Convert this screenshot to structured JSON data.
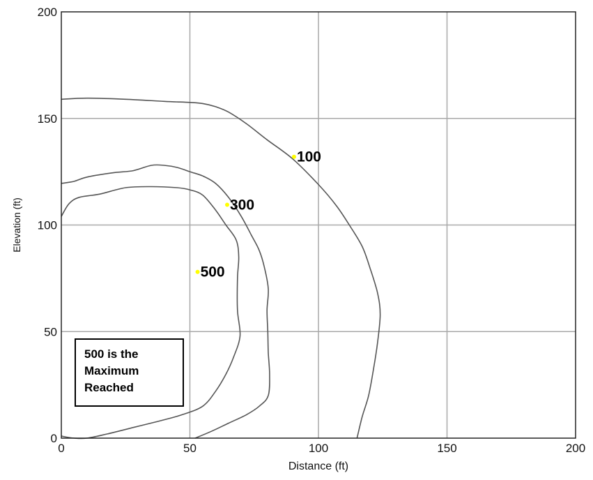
{
  "chart_data": {
    "type": "line",
    "title": "",
    "xlabel": "Distance (ft)",
    "ylabel": "Elevation (ft)",
    "xlim": [
      0,
      200
    ],
    "ylim": [
      0,
      200
    ],
    "x_ticks": [
      0,
      50,
      100,
      150,
      200
    ],
    "y_ticks": [
      0,
      50,
      100,
      150,
      200
    ],
    "grid": true,
    "marker_color": "#ffff00",
    "line_color": "#555555",
    "series": [
      {
        "label": "100",
        "label_point": [
          90.5,
          132
        ],
        "points": [
          [
            0,
            159
          ],
          [
            10,
            159.5
          ],
          [
            25,
            159
          ],
          [
            40,
            158
          ],
          [
            50,
            157.5
          ],
          [
            55,
            157
          ],
          [
            60,
            155.5
          ],
          [
            65,
            153
          ],
          [
            72,
            147.5
          ],
          [
            80,
            140
          ],
          [
            90,
            131
          ],
          [
            100,
            119
          ],
          [
            107,
            109
          ],
          [
            112,
            100
          ],
          [
            117,
            90
          ],
          [
            120,
            80
          ],
          [
            123,
            68
          ],
          [
            124,
            58
          ],
          [
            123,
            45
          ],
          [
            121.5,
            33
          ],
          [
            119.5,
            20
          ],
          [
            117,
            10
          ],
          [
            115,
            0
          ]
        ]
      },
      {
        "label": "300",
        "label_point": [
          64.5,
          109.5
        ],
        "points": [
          [
            0,
            119.5
          ],
          [
            5,
            120.5
          ],
          [
            10,
            122.5
          ],
          [
            20,
            124.5
          ],
          [
            28,
            125.5
          ],
          [
            35,
            128
          ],
          [
            40,
            128
          ],
          [
            45,
            127
          ],
          [
            50,
            125
          ],
          [
            55,
            123
          ],
          [
            60,
            119.5
          ],
          [
            65,
            113
          ],
          [
            70,
            104
          ],
          [
            74,
            95
          ],
          [
            77,
            88
          ],
          [
            79,
            80
          ],
          [
            80.5,
            70
          ],
          [
            80,
            60
          ],
          [
            80.3,
            50
          ],
          [
            80.5,
            40
          ],
          [
            81,
            30
          ],
          [
            80.5,
            20
          ],
          [
            77,
            15
          ],
          [
            72,
            11
          ],
          [
            65,
            7
          ],
          [
            58,
            3
          ],
          [
            52,
            0
          ]
        ]
      },
      {
        "label": "500",
        "label_point": [
          53,
          78
        ],
        "points": [
          [
            0,
            104
          ],
          [
            3,
            110
          ],
          [
            7,
            113
          ],
          [
            15,
            114.5
          ],
          [
            25,
            117.5
          ],
          [
            35,
            118
          ],
          [
            45,
            117.5
          ],
          [
            50,
            116.5
          ],
          [
            55,
            114
          ],
          [
            60,
            107
          ],
          [
            64,
            100
          ],
          [
            68,
            93
          ],
          [
            69,
            85
          ],
          [
            68.5,
            75
          ],
          [
            68.5,
            60
          ],
          [
            69.5,
            48
          ],
          [
            67,
            38
          ],
          [
            64,
            30
          ],
          [
            60,
            22
          ],
          [
            55,
            15
          ],
          [
            47,
            11
          ],
          [
            38,
            8
          ],
          [
            28,
            5
          ],
          [
            18,
            2
          ],
          [
            10,
            0
          ],
          [
            5,
            0
          ],
          [
            2,
            0.5
          ],
          [
            0,
            1
          ]
        ]
      }
    ],
    "annotation": {
      "lines": [
        "500 is the",
        "Maximum",
        "Reached"
      ]
    }
  }
}
